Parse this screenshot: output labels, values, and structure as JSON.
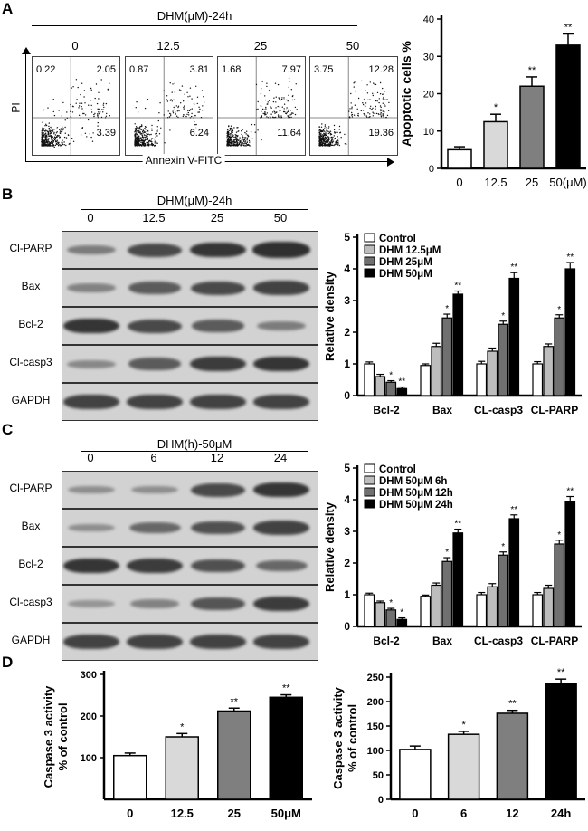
{
  "panels": {
    "A": {
      "letter": "A",
      "header": "DHM(μM)-24h",
      "doses": [
        "0",
        "12.5",
        "25",
        "50"
      ],
      "y_axis_label": "PI",
      "x_axis_label": "Annexin V-FITC",
      "plots": [
        {
          "ul": "0.22",
          "ur": "2.05",
          "lr": "3.39"
        },
        {
          "ul": "0.87",
          "ur": "3.81",
          "lr": "6.24"
        },
        {
          "ul": "1.68",
          "ur": "7.97",
          "lr": "11.64"
        },
        {
          "ul": "3.75",
          "ur": "12.28",
          "lr": "19.36"
        }
      ]
    },
    "B": {
      "letter": "B",
      "header": "DHM(μM)-24h",
      "lanes": [
        "0",
        "12.5",
        "25",
        "50"
      ],
      "rows": [
        "Cl-PARP",
        "Bax",
        "Bcl-2",
        "Cl-casp3",
        "GAPDH"
      ],
      "band_levels": [
        [
          0.35,
          0.75,
          0.9,
          0.95
        ],
        [
          0.3,
          0.6,
          0.75,
          0.8
        ],
        [
          0.9,
          0.75,
          0.6,
          0.35
        ],
        [
          0.25,
          0.6,
          0.85,
          0.9
        ],
        [
          0.8,
          0.8,
          0.8,
          0.8
        ]
      ]
    },
    "C": {
      "letter": "C",
      "header": "DHM(h)-50μM",
      "lanes": [
        "0",
        "6",
        "12",
        "24"
      ],
      "rows": [
        "Cl-PARP",
        "Bax",
        "Bcl-2",
        "Cl-casp3",
        "GAPDH"
      ],
      "band_levels": [
        [
          0.2,
          0.2,
          0.75,
          0.9
        ],
        [
          0.2,
          0.5,
          0.7,
          0.8
        ],
        [
          0.9,
          0.85,
          0.7,
          0.5
        ],
        [
          0.15,
          0.3,
          0.65,
          0.85
        ],
        [
          0.8,
          0.8,
          0.8,
          0.8
        ]
      ]
    },
    "D": {
      "letter": "D"
    }
  },
  "chart_data": [
    {
      "type": "bar",
      "id": "A",
      "categories": [
        "0",
        "12.5",
        "25",
        "50(μM)"
      ],
      "values": [
        5,
        12.5,
        22,
        33
      ],
      "errors": [
        0.8,
        2,
        2.5,
        3
      ],
      "sig": [
        "",
        "*",
        "**",
        "**"
      ],
      "ylabel": "Apoptotic cells %",
      "ylim": [
        0,
        40
      ],
      "yticks": [
        0,
        10,
        20,
        30,
        40
      ],
      "colors": [
        "#ffffff",
        "#d9d9d9",
        "#7f7f7f",
        "#000000"
      ]
    },
    {
      "type": "bar",
      "id": "B",
      "groups": [
        "Bcl-2",
        "Bax",
        "CL-casp3",
        "CL-PARP"
      ],
      "series": [
        {
          "name": "Control",
          "values": [
            1.0,
            0.95,
            1.0,
            1.0
          ],
          "errors": [
            0.06,
            0.05,
            0.08,
            0.07
          ],
          "sig": [
            "",
            "",
            "",
            ""
          ]
        },
        {
          "name": "DHM 12.5μM",
          "values": [
            0.6,
            1.55,
            1.4,
            1.55
          ],
          "errors": [
            0.07,
            0.1,
            0.1,
            0.08
          ],
          "sig": [
            "",
            "",
            "",
            ""
          ]
        },
        {
          "name": "DHM 25μM",
          "values": [
            0.42,
            2.45,
            2.25,
            2.45
          ],
          "errors": [
            0.05,
            0.12,
            0.1,
            0.1
          ],
          "sig": [
            "*",
            "*",
            "*",
            "*"
          ]
        },
        {
          "name": "DHM 50μM",
          "values": [
            0.22,
            3.2,
            3.7,
            4.0
          ],
          "errors": [
            0.05,
            0.1,
            0.18,
            0.2
          ],
          "sig": [
            "**",
            "**",
            "**",
            "**"
          ]
        }
      ],
      "ylabel": "Relative density",
      "ylim": [
        0,
        5
      ],
      "yticks": [
        0,
        1,
        2,
        3,
        4,
        5
      ],
      "colors": [
        "#ffffff",
        "#bdbdbd",
        "#707070",
        "#000000"
      ]
    },
    {
      "type": "bar",
      "id": "C",
      "groups": [
        "Bcl-2",
        "Bax",
        "CL-casp3",
        "CL-PARP"
      ],
      "series": [
        {
          "name": "Control",
          "values": [
            1.0,
            0.95,
            1.0,
            1.0
          ],
          "errors": [
            0.05,
            0.04,
            0.07,
            0.07
          ],
          "sig": [
            "",
            "",
            "",
            ""
          ]
        },
        {
          "name": "DHM 50μM 6h",
          "values": [
            0.75,
            1.3,
            1.25,
            1.2
          ],
          "errors": [
            0.05,
            0.07,
            0.1,
            0.1
          ],
          "sig": [
            "",
            "",
            "",
            ""
          ]
        },
        {
          "name": "DHM 50μM 12h",
          "values": [
            0.52,
            2.05,
            2.25,
            2.6
          ],
          "errors": [
            0.05,
            0.12,
            0.1,
            0.12
          ],
          "sig": [
            "*",
            "*",
            "*",
            "*"
          ]
        },
        {
          "name": "DHM 50μM 24h",
          "values": [
            0.22,
            2.95,
            3.4,
            3.95
          ],
          "errors": [
            0.05,
            0.12,
            0.12,
            0.15
          ],
          "sig": [
            "*",
            "**",
            "**",
            "**"
          ]
        }
      ],
      "ylabel": "Relative density",
      "ylim": [
        0,
        5
      ],
      "yticks": [
        0,
        1,
        2,
        3,
        4,
        5
      ],
      "colors": [
        "#ffffff",
        "#bdbdbd",
        "#707070",
        "#000000"
      ]
    },
    {
      "type": "bar",
      "id": "D1",
      "categories": [
        "0",
        "12.5",
        "25",
        "50μM"
      ],
      "values": [
        105,
        150,
        212,
        245
      ],
      "errors": [
        6,
        8,
        7,
        6
      ],
      "sig": [
        "",
        "*",
        "**",
        "**"
      ],
      "ylabel": "Caspase 3 activity\n% of control",
      "ylim": [
        0,
        300
      ],
      "yticks": [
        100,
        200,
        300
      ],
      "colors": [
        "#ffffff",
        "#d9d9d9",
        "#7f7f7f",
        "#000000"
      ]
    },
    {
      "type": "bar",
      "id": "D2",
      "categories": [
        "0",
        "6",
        "12",
        "24h"
      ],
      "values": [
        102,
        133,
        176,
        236
      ],
      "errors": [
        7,
        6,
        6,
        10
      ],
      "sig": [
        "",
        "*",
        "**",
        "**"
      ],
      "ylabel": "Caspase 3 activity\n% of control",
      "ylim": [
        0,
        250
      ],
      "yticks": [
        0,
        50,
        100,
        150,
        200,
        250
      ],
      "colors": [
        "#ffffff",
        "#d9d9d9",
        "#7f7f7f",
        "#000000"
      ]
    }
  ]
}
